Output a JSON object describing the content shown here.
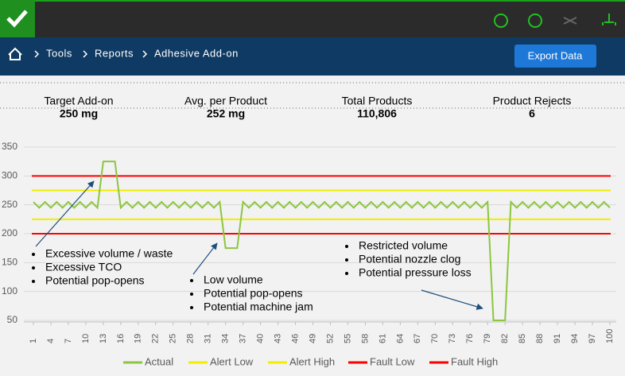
{
  "header": {
    "breadcrumb": [
      "Tools",
      "Reports",
      "Adhesive Add-on"
    ],
    "button": "Export Data"
  },
  "stats": [
    {
      "label": "Target Add-on",
      "value": "250 mg"
    },
    {
      "label": "Avg. per Product",
      "value": "252 mg"
    },
    {
      "label": "Total Products",
      "value": "110,806"
    },
    {
      "label": "Product Rejects",
      "value": "6"
    }
  ],
  "chart_data": {
    "type": "line",
    "x": [
      1,
      2,
      3,
      4,
      5,
      6,
      7,
      8,
      9,
      10,
      11,
      12,
      13,
      14,
      15,
      16,
      17,
      18,
      19,
      20,
      21,
      22,
      23,
      24,
      25,
      26,
      27,
      28,
      29,
      30,
      31,
      32,
      33,
      34,
      35,
      36,
      37,
      38,
      39,
      40,
      41,
      42,
      43,
      44,
      45,
      46,
      47,
      48,
      49,
      50,
      51,
      52,
      53,
      54,
      55,
      56,
      57,
      58,
      59,
      60,
      61,
      62,
      63,
      64,
      65,
      66,
      67,
      68,
      69,
      70,
      71,
      72,
      73,
      74,
      75,
      76,
      77,
      78,
      79,
      80,
      81,
      82,
      83,
      84,
      85,
      86,
      87,
      88,
      89,
      90,
      91,
      92,
      93,
      94,
      95,
      96,
      97,
      98,
      99,
      100
    ],
    "series": [
      {
        "name": "Actual",
        "color": "#8cc63f",
        "values": [
          255,
          245,
          255,
          245,
          255,
          245,
          255,
          245,
          255,
          245,
          255,
          245,
          325,
          325,
          325,
          245,
          255,
          245,
          255,
          245,
          255,
          245,
          255,
          245,
          255,
          245,
          255,
          245,
          255,
          245,
          255,
          245,
          255,
          175,
          175,
          175,
          255,
          245,
          255,
          245,
          255,
          245,
          255,
          245,
          255,
          245,
          255,
          245,
          255,
          245,
          255,
          245,
          255,
          245,
          255,
          245,
          255,
          245,
          255,
          245,
          255,
          245,
          255,
          245,
          255,
          245,
          255,
          245,
          255,
          245,
          255,
          245,
          255,
          245,
          255,
          245,
          255,
          245,
          255,
          50,
          50,
          50,
          255,
          245,
          255,
          245,
          255,
          245,
          255,
          245,
          255,
          245,
          255,
          245,
          255,
          245,
          255,
          245,
          255,
          245
        ]
      }
    ],
    "reference_lines": [
      {
        "name": "Alert Low",
        "color": "#f2ee00",
        "value": 225
      },
      {
        "name": "Alert High",
        "color": "#f2ee00",
        "value": 275
      },
      {
        "name": "Fault Low",
        "color": "#ff0000",
        "value": 200
      },
      {
        "name": "Fault High",
        "color": "#ff0000",
        "value": 300
      }
    ],
    "xlim": [
      1,
      100
    ],
    "xticks": [
      1,
      4,
      7,
      10,
      13,
      16,
      19,
      22,
      25,
      28,
      31,
      34,
      37,
      40,
      43,
      46,
      49,
      52,
      55,
      58,
      61,
      64,
      67,
      70,
      73,
      76,
      79,
      82,
      85,
      88,
      91,
      94,
      97,
      100
    ],
    "ylim": [
      50,
      350
    ],
    "yticks": [
      50,
      100,
      150,
      200,
      250,
      300,
      350
    ],
    "grid": true,
    "annotations": [
      [
        "Excessive volume / waste",
        "Excessive TCO",
        "Potential pop-opens"
      ],
      [
        "Low volume",
        "Potential pop-opens",
        "Potential machine jam"
      ],
      [
        "Restricted volume",
        "Potential nozzle clog",
        "Potential pressure loss"
      ]
    ]
  }
}
